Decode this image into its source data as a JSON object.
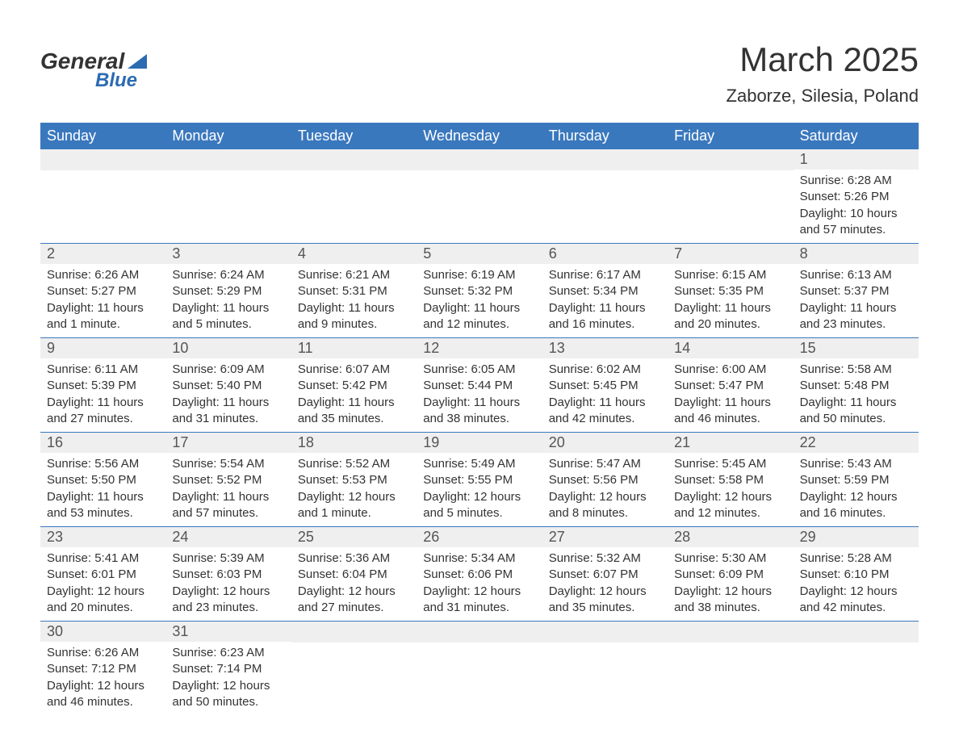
{
  "logo": {
    "text_general": "General",
    "text_blue": "Blue",
    "accent_color": "#2b6bb2"
  },
  "title": "March 2025",
  "location": "Zaborze, Silesia, Poland",
  "colors": {
    "header_bg": "#3a78be",
    "header_text": "#ffffff",
    "daynum_bg": "#efefef",
    "text": "#333333",
    "row_border": "#3a78be"
  },
  "weekdays": [
    "Sunday",
    "Monday",
    "Tuesday",
    "Wednesday",
    "Thursday",
    "Friday",
    "Saturday"
  ],
  "weeks": [
    [
      null,
      null,
      null,
      null,
      null,
      null,
      {
        "n": "1",
        "sunrise": "Sunrise: 6:28 AM",
        "sunset": "Sunset: 5:26 PM",
        "day1": "Daylight: 10 hours",
        "day2": "and 57 minutes."
      }
    ],
    [
      {
        "n": "2",
        "sunrise": "Sunrise: 6:26 AM",
        "sunset": "Sunset: 5:27 PM",
        "day1": "Daylight: 11 hours",
        "day2": "and 1 minute."
      },
      {
        "n": "3",
        "sunrise": "Sunrise: 6:24 AM",
        "sunset": "Sunset: 5:29 PM",
        "day1": "Daylight: 11 hours",
        "day2": "and 5 minutes."
      },
      {
        "n": "4",
        "sunrise": "Sunrise: 6:21 AM",
        "sunset": "Sunset: 5:31 PM",
        "day1": "Daylight: 11 hours",
        "day2": "and 9 minutes."
      },
      {
        "n": "5",
        "sunrise": "Sunrise: 6:19 AM",
        "sunset": "Sunset: 5:32 PM",
        "day1": "Daylight: 11 hours",
        "day2": "and 12 minutes."
      },
      {
        "n": "6",
        "sunrise": "Sunrise: 6:17 AM",
        "sunset": "Sunset: 5:34 PM",
        "day1": "Daylight: 11 hours",
        "day2": "and 16 minutes."
      },
      {
        "n": "7",
        "sunrise": "Sunrise: 6:15 AM",
        "sunset": "Sunset: 5:35 PM",
        "day1": "Daylight: 11 hours",
        "day2": "and 20 minutes."
      },
      {
        "n": "8",
        "sunrise": "Sunrise: 6:13 AM",
        "sunset": "Sunset: 5:37 PM",
        "day1": "Daylight: 11 hours",
        "day2": "and 23 minutes."
      }
    ],
    [
      {
        "n": "9",
        "sunrise": "Sunrise: 6:11 AM",
        "sunset": "Sunset: 5:39 PM",
        "day1": "Daylight: 11 hours",
        "day2": "and 27 minutes."
      },
      {
        "n": "10",
        "sunrise": "Sunrise: 6:09 AM",
        "sunset": "Sunset: 5:40 PM",
        "day1": "Daylight: 11 hours",
        "day2": "and 31 minutes."
      },
      {
        "n": "11",
        "sunrise": "Sunrise: 6:07 AM",
        "sunset": "Sunset: 5:42 PM",
        "day1": "Daylight: 11 hours",
        "day2": "and 35 minutes."
      },
      {
        "n": "12",
        "sunrise": "Sunrise: 6:05 AM",
        "sunset": "Sunset: 5:44 PM",
        "day1": "Daylight: 11 hours",
        "day2": "and 38 minutes."
      },
      {
        "n": "13",
        "sunrise": "Sunrise: 6:02 AM",
        "sunset": "Sunset: 5:45 PM",
        "day1": "Daylight: 11 hours",
        "day2": "and 42 minutes."
      },
      {
        "n": "14",
        "sunrise": "Sunrise: 6:00 AM",
        "sunset": "Sunset: 5:47 PM",
        "day1": "Daylight: 11 hours",
        "day2": "and 46 minutes."
      },
      {
        "n": "15",
        "sunrise": "Sunrise: 5:58 AM",
        "sunset": "Sunset: 5:48 PM",
        "day1": "Daylight: 11 hours",
        "day2": "and 50 minutes."
      }
    ],
    [
      {
        "n": "16",
        "sunrise": "Sunrise: 5:56 AM",
        "sunset": "Sunset: 5:50 PM",
        "day1": "Daylight: 11 hours",
        "day2": "and 53 minutes."
      },
      {
        "n": "17",
        "sunrise": "Sunrise: 5:54 AM",
        "sunset": "Sunset: 5:52 PM",
        "day1": "Daylight: 11 hours",
        "day2": "and 57 minutes."
      },
      {
        "n": "18",
        "sunrise": "Sunrise: 5:52 AM",
        "sunset": "Sunset: 5:53 PM",
        "day1": "Daylight: 12 hours",
        "day2": "and 1 minute."
      },
      {
        "n": "19",
        "sunrise": "Sunrise: 5:49 AM",
        "sunset": "Sunset: 5:55 PM",
        "day1": "Daylight: 12 hours",
        "day2": "and 5 minutes."
      },
      {
        "n": "20",
        "sunrise": "Sunrise: 5:47 AM",
        "sunset": "Sunset: 5:56 PM",
        "day1": "Daylight: 12 hours",
        "day2": "and 8 minutes."
      },
      {
        "n": "21",
        "sunrise": "Sunrise: 5:45 AM",
        "sunset": "Sunset: 5:58 PM",
        "day1": "Daylight: 12 hours",
        "day2": "and 12 minutes."
      },
      {
        "n": "22",
        "sunrise": "Sunrise: 5:43 AM",
        "sunset": "Sunset: 5:59 PM",
        "day1": "Daylight: 12 hours",
        "day2": "and 16 minutes."
      }
    ],
    [
      {
        "n": "23",
        "sunrise": "Sunrise: 5:41 AM",
        "sunset": "Sunset: 6:01 PM",
        "day1": "Daylight: 12 hours",
        "day2": "and 20 minutes."
      },
      {
        "n": "24",
        "sunrise": "Sunrise: 5:39 AM",
        "sunset": "Sunset: 6:03 PM",
        "day1": "Daylight: 12 hours",
        "day2": "and 23 minutes."
      },
      {
        "n": "25",
        "sunrise": "Sunrise: 5:36 AM",
        "sunset": "Sunset: 6:04 PM",
        "day1": "Daylight: 12 hours",
        "day2": "and 27 minutes."
      },
      {
        "n": "26",
        "sunrise": "Sunrise: 5:34 AM",
        "sunset": "Sunset: 6:06 PM",
        "day1": "Daylight: 12 hours",
        "day2": "and 31 minutes."
      },
      {
        "n": "27",
        "sunrise": "Sunrise: 5:32 AM",
        "sunset": "Sunset: 6:07 PM",
        "day1": "Daylight: 12 hours",
        "day2": "and 35 minutes."
      },
      {
        "n": "28",
        "sunrise": "Sunrise: 5:30 AM",
        "sunset": "Sunset: 6:09 PM",
        "day1": "Daylight: 12 hours",
        "day2": "and 38 minutes."
      },
      {
        "n": "29",
        "sunrise": "Sunrise: 5:28 AM",
        "sunset": "Sunset: 6:10 PM",
        "day1": "Daylight: 12 hours",
        "day2": "and 42 minutes."
      }
    ],
    [
      {
        "n": "30",
        "sunrise": "Sunrise: 6:26 AM",
        "sunset": "Sunset: 7:12 PM",
        "day1": "Daylight: 12 hours",
        "day2": "and 46 minutes."
      },
      {
        "n": "31",
        "sunrise": "Sunrise: 6:23 AM",
        "sunset": "Sunset: 7:14 PM",
        "day1": "Daylight: 12 hours",
        "day2": "and 50 minutes."
      },
      null,
      null,
      null,
      null,
      null
    ]
  ]
}
